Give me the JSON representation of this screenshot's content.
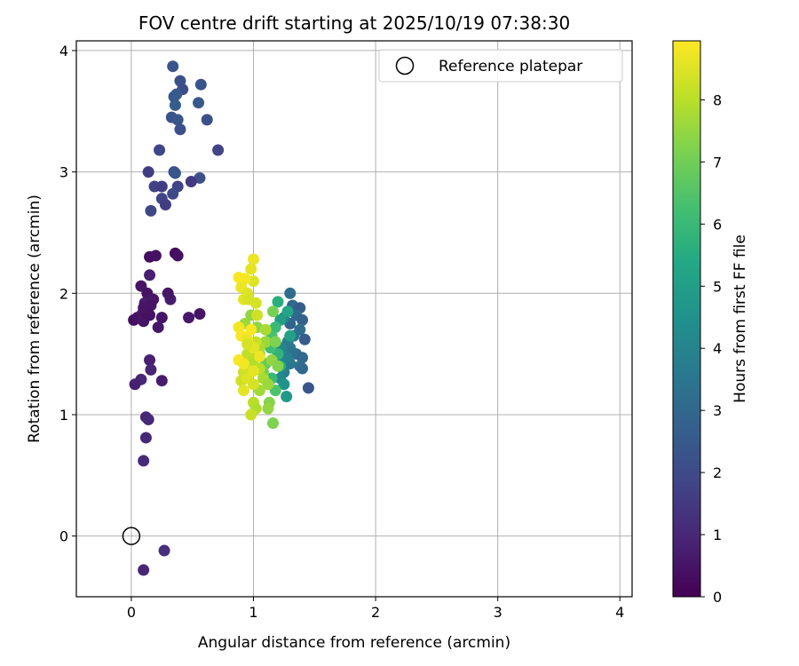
{
  "chart_data": {
    "type": "scatter",
    "title": "FOV centre drift starting at 2025/10/19 07:38:30",
    "xlabel": "Angular distance from reference (arcmin)",
    "ylabel": "Rotation from reference (arcmin)",
    "xlim": [
      -0.45,
      4.1
    ],
    "ylim": [
      -0.5,
      4.08
    ],
    "xticks": [
      0,
      1,
      2,
      3,
      4
    ],
    "yticks": [
      0,
      1,
      2,
      3,
      4
    ],
    "grid": true,
    "legend": {
      "placement": "upper-right",
      "entries": [
        {
          "label": "Reference platepar",
          "marker": "hollow-circle"
        }
      ]
    },
    "reference_point": {
      "x": 0,
      "y": 0
    },
    "colorbar": {
      "label": "Hours from first FF file",
      "colormap": "viridis",
      "range": [
        0,
        8.95
      ],
      "ticks": [
        0,
        1,
        2,
        3,
        4,
        5,
        6,
        7,
        8
      ]
    },
    "series": [
      {
        "points": [
          [
            0.02,
            1.78,
            0.3
          ],
          [
            0.05,
            1.8,
            0.4
          ],
          [
            0.1,
            1.77,
            0.5
          ],
          [
            0.09,
            1.83,
            0.5
          ],
          [
            0.12,
            1.85,
            0.6
          ],
          [
            0.15,
            1.82,
            0.4
          ],
          [
            0.08,
            2.06,
            0.5
          ],
          [
            0.13,
            2.0,
            0.4
          ],
          [
            0.18,
            1.95,
            0.6
          ],
          [
            0.11,
            1.92,
            0.7
          ],
          [
            0.16,
            1.9,
            0.5
          ],
          [
            0.15,
            2.15,
            0.8
          ],
          [
            0.25,
            1.8,
            0.5
          ],
          [
            0.22,
            1.72,
            0.6
          ],
          [
            0.32,
            1.95,
            0.7
          ],
          [
            0.3,
            2.0,
            0.5
          ],
          [
            0.47,
            1.8,
            0.6
          ],
          [
            0.56,
            1.83,
            0.5
          ],
          [
            0.13,
            1.83,
            0.4
          ],
          [
            0.1,
            1.88,
            0.5
          ],
          [
            0.15,
            2.3,
            0.3
          ],
          [
            0.2,
            2.31,
            0.4
          ],
          [
            0.36,
            2.33,
            0.3
          ],
          [
            0.38,
            2.31,
            0.4
          ],
          [
            0.15,
            1.45,
            0.8
          ],
          [
            0.16,
            1.37,
            0.9
          ],
          [
            0.08,
            1.29,
            1.0
          ],
          [
            0.03,
            1.25,
            0.8
          ],
          [
            0.25,
            1.28,
            0.7
          ],
          [
            0.12,
            0.98,
            0.9
          ],
          [
            0.14,
            0.96,
            1.0
          ],
          [
            0.12,
            0.81,
            1.0
          ],
          [
            0.1,
            0.62,
            1.1
          ],
          [
            0.1,
            -0.28,
            1.0
          ],
          [
            0.27,
            -0.12,
            1.2
          ],
          [
            0.34,
            3.87,
            2.3
          ],
          [
            0.4,
            3.75,
            2.2
          ],
          [
            0.42,
            3.68,
            2.1
          ],
          [
            0.35,
            3.62,
            2.4
          ],
          [
            0.37,
            3.64,
            2.5
          ],
          [
            0.57,
            3.72,
            2.3
          ],
          [
            0.36,
            3.55,
            2.6
          ],
          [
            0.55,
            3.57,
            2.5
          ],
          [
            0.33,
            3.45,
            2.3
          ],
          [
            0.38,
            3.43,
            2.4
          ],
          [
            0.62,
            3.43,
            2.2
          ],
          [
            0.4,
            3.35,
            2.2
          ],
          [
            0.23,
            3.18,
            1.9
          ],
          [
            0.71,
            3.18,
            1.8
          ],
          [
            0.14,
            3.0,
            1.6
          ],
          [
            0.35,
            3.0,
            2.0
          ],
          [
            0.36,
            2.99,
            2.4
          ],
          [
            0.56,
            2.95,
            2.2
          ],
          [
            0.19,
            2.88,
            1.7
          ],
          [
            0.25,
            2.88,
            1.6
          ],
          [
            0.38,
            2.88,
            1.8
          ],
          [
            0.49,
            2.92,
            1.5
          ],
          [
            0.34,
            2.82,
            2.0
          ],
          [
            0.25,
            2.78,
            1.8
          ],
          [
            0.28,
            2.73,
            1.6
          ],
          [
            0.16,
            2.68,
            1.9
          ],
          [
            1.3,
            2.0,
            3.2
          ],
          [
            1.32,
            1.9,
            3.0
          ],
          [
            1.38,
            1.88,
            2.6
          ],
          [
            1.35,
            1.82,
            3.1
          ],
          [
            1.4,
            1.78,
            2.8
          ],
          [
            1.3,
            1.75,
            2.9
          ],
          [
            1.25,
            1.8,
            4.0
          ],
          [
            1.38,
            1.7,
            3.2
          ],
          [
            1.42,
            1.62,
            2.6
          ],
          [
            1.3,
            1.55,
            3.5
          ],
          [
            1.35,
            1.5,
            3.3
          ],
          [
            1.4,
            1.47,
            3.0
          ],
          [
            1.38,
            1.4,
            3.4
          ],
          [
            1.4,
            1.38,
            3.0
          ],
          [
            1.45,
            1.22,
            2.4
          ],
          [
            1.3,
            1.42,
            3.6
          ],
          [
            1.25,
            1.35,
            3.8
          ],
          [
            1.22,
            1.3,
            4.2
          ],
          [
            1.27,
            1.15,
            4.8
          ],
          [
            1.25,
            1.25,
            4.5
          ],
          [
            1.2,
            1.45,
            4.3
          ],
          [
            1.28,
            1.6,
            3.7
          ],
          [
            1.33,
            1.65,
            3.4
          ],
          [
            1.23,
            1.55,
            4.0
          ],
          [
            1.27,
            1.47,
            3.9
          ],
          [
            1.2,
            1.93,
            5.6
          ],
          [
            1.28,
            1.85,
            5.3
          ],
          [
            1.22,
            1.78,
            5.0
          ],
          [
            1.18,
            1.72,
            6.0
          ],
          [
            1.15,
            1.65,
            6.3
          ],
          [
            1.1,
            1.6,
            6.6
          ],
          [
            1.2,
            1.5,
            5.8
          ],
          [
            1.22,
            1.4,
            5.5
          ],
          [
            1.15,
            1.3,
            6.0
          ],
          [
            1.18,
            1.2,
            6.4
          ],
          [
            1.1,
            1.42,
            6.8
          ],
          [
            1.14,
            1.55,
            6.2
          ],
          [
            1.05,
            1.5,
            7.0
          ],
          [
            1.3,
            1.65,
            5.1
          ],
          [
            1.16,
            1.85,
            7.1
          ],
          [
            1.08,
            1.35,
            7.0
          ],
          [
            1.13,
            1.1,
            7.3
          ],
          [
            0.93,
            1.75,
            7.6
          ],
          [
            0.98,
            1.82,
            7.5
          ],
          [
            1.03,
            1.72,
            7.4
          ],
          [
            1.1,
            1.6,
            7.6
          ],
          [
            1.05,
            1.55,
            7.8
          ],
          [
            1.15,
            1.45,
            7.5
          ],
          [
            1.0,
            1.45,
            7.9
          ],
          [
            0.95,
            1.38,
            8.0
          ],
          [
            1.08,
            1.3,
            7.8
          ],
          [
            1.12,
            1.25,
            7.6
          ],
          [
            1.05,
            1.2,
            7.7
          ],
          [
            1.0,
            1.1,
            8.0
          ],
          [
            1.12,
            1.05,
            7.5
          ],
          [
            1.02,
            1.05,
            7.9
          ],
          [
            0.98,
            1.0,
            8.2
          ],
          [
            1.16,
            0.93,
            7.2
          ],
          [
            1.2,
            1.4,
            7.3
          ],
          [
            1.18,
            1.6,
            7.2
          ],
          [
            1.1,
            1.7,
            7.8
          ],
          [
            1.02,
            1.6,
            8.2
          ],
          [
            0.9,
            1.28,
            8.3
          ],
          [
            0.92,
            1.35,
            8.3
          ],
          [
            0.95,
            1.5,
            8.1
          ],
          [
            1.05,
            1.38,
            8.0
          ],
          [
            1.0,
            2.28,
            8.7
          ],
          [
            0.98,
            2.2,
            8.6
          ],
          [
            1.0,
            2.1,
            8.5
          ],
          [
            0.93,
            2.12,
            8.8
          ],
          [
            0.88,
            2.13,
            8.9
          ],
          [
            0.9,
            2.05,
            8.7
          ],
          [
            0.95,
            2.0,
            8.5
          ],
          [
            0.92,
            1.95,
            8.6
          ],
          [
            1.02,
            1.92,
            8.4
          ],
          [
            0.88,
            1.72,
            8.8
          ],
          [
            0.9,
            1.65,
            8.9
          ],
          [
            0.95,
            1.62,
            8.7
          ],
          [
            1.0,
            1.55,
            8.6
          ],
          [
            0.88,
            1.45,
            8.9
          ],
          [
            0.92,
            1.42,
            8.8
          ],
          [
            0.98,
            1.7,
            8.9
          ],
          [
            1.05,
            1.48,
            8.7
          ],
          [
            0.95,
            1.3,
            8.5
          ],
          [
            1.0,
            1.25,
            8.4
          ],
          [
            0.92,
            1.2,
            8.6
          ],
          [
            1.0,
            1.36,
            8.6
          ],
          [
            0.95,
            1.58,
            8.4
          ],
          [
            1.03,
            1.82,
            8.3
          ],
          [
            0.96,
            1.95,
            8.4
          ]
        ]
      }
    ]
  }
}
